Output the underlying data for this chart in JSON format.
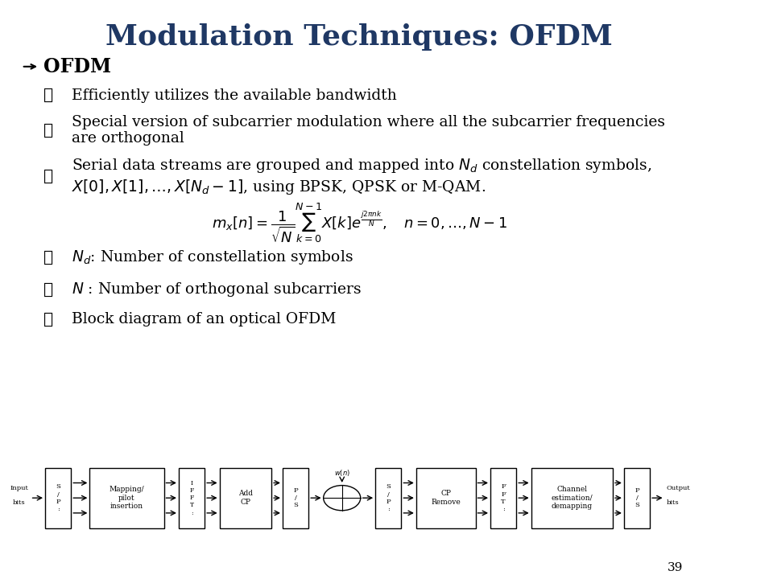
{
  "title": "Modulation Techniques: OFDM",
  "title_color": "#1F3864",
  "title_fontsize": 26,
  "bg_color": "#FFFFFF",
  "bullet_color": "#1F3864",
  "text_color": "#000000",
  "page_number": "39",
  "section_header": "OFDM",
  "bullets": [
    "Efficiently utilizes the available bandwidth",
    "Special version of subcarrier modulation where all the subcarrier frequencies\nare orthogonal",
    "Serial data streams are grouped and mapped into $N_d$ constellation symbols,\n$X[0], X[1], \\ldots, X[N_d - 1]$, using BPSK, QPSK or M-QAM.",
    "$N_d$: Number of constellation symbols",
    "$N$ : Number of orthogonal subcarriers",
    "Block diagram of an optical OFDM"
  ]
}
